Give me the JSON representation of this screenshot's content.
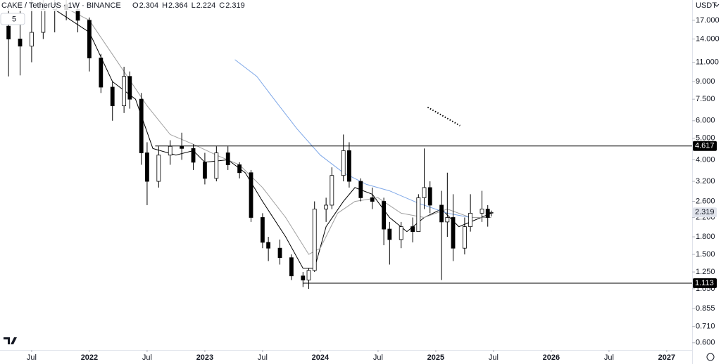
{
  "chart_data": {
    "type": "candlestick",
    "title": "CAKE / TetherUS · 1W · BINANCE",
    "ohlc_labels": [
      "O",
      "H",
      "L",
      "C"
    ],
    "ohlc_values": [
      2.304,
      2.364,
      2.224,
      2.319
    ],
    "currency": "USDT",
    "indicator_badge": "5",
    "log_scale": true,
    "up_color": "#ffffff",
    "down_color": "#000000",
    "outline_color": "#000000",
    "x": [
      2021.3,
      2021.4,
      2021.5,
      2021.6,
      2021.7,
      2021.8,
      2021.9,
      2022.0,
      2022.1,
      2022.2,
      2022.3,
      2022.35,
      2022.45,
      2022.5,
      2022.6,
      2022.7,
      2022.8,
      2022.9,
      2023.0,
      2023.1,
      2023.2,
      2023.3,
      2023.4,
      2023.5,
      2023.55,
      2023.65,
      2023.75,
      2023.85,
      2023.9,
      2023.95,
      2024.05,
      2024.1,
      2024.2,
      2024.25,
      2024.35,
      2024.45,
      2024.55,
      2024.6,
      2024.7,
      2024.8,
      2024.85,
      2024.9,
      2024.95,
      2025.05,
      2025.1,
      2025.15,
      2025.25,
      2025.3,
      2025.4,
      2025.45,
      2025.48
    ],
    "open": [
      16,
      14,
      13,
      15,
      19,
      20,
      19,
      17,
      11.5,
      8.5,
      7,
      9.5,
      7.5,
      4.3,
      3.2,
      4.2,
      4.6,
      4.5,
      3.9,
      3.3,
      4.3,
      3.8,
      3.5,
      2.2,
      1.7,
      1.6,
      1.45,
      1.2,
      1.15,
      1.27,
      2.4,
      2.5,
      3.4,
      4.4,
      3.2,
      2.7,
      2.6,
      1.95,
      1.75,
      2.0,
      1.9,
      2.7,
      3.0,
      2.5,
      2.1,
      2.2,
      1.6,
      2.0,
      2.3,
      2.4,
      2.304
    ],
    "high": [
      20,
      20,
      21,
      21,
      21,
      21,
      20,
      17.5,
      12,
      9,
      10.5,
      10,
      8,
      4.8,
      4.6,
      4.9,
      5.3,
      4.7,
      4.3,
      4.6,
      4.6,
      3.9,
      3.6,
      2.3,
      1.8,
      1.75,
      1.5,
      1.25,
      1.3,
      2.6,
      2.7,
      3.7,
      5.2,
      4.8,
      3.3,
      3.0,
      2.7,
      2.1,
      2.1,
      2.2,
      2.8,
      4.5,
      3.2,
      2.9,
      3.5,
      2.8,
      2.2,
      2.8,
      2.9,
      2.5,
      2.364
    ],
    "low": [
      9.5,
      9.6,
      11,
      14,
      15,
      17,
      15,
      10,
      8,
      6,
      6.5,
      6.8,
      3.8,
      2.5,
      3.0,
      3.8,
      4.0,
      3.6,
      3.1,
      3.2,
      3.6,
      3.3,
      2.1,
      1.6,
      1.4,
      1.35,
      1.15,
      1.07,
      1.05,
      1.25,
      2.1,
      2.4,
      3.2,
      3.0,
      2.6,
      2.4,
      1.65,
      1.35,
      1.6,
      1.7,
      1.9,
      2.4,
      2.3,
      1.15,
      1.8,
      1.4,
      1.5,
      1.9,
      2.1,
      2.0,
      2.224
    ],
    "close": [
      14,
      13,
      15,
      19,
      20,
      19,
      17,
      11.5,
      8.5,
      7,
      9.5,
      7.5,
      4.3,
      3.2,
      4.2,
      4.6,
      4.5,
      3.9,
      3.3,
      4.3,
      3.8,
      3.5,
      2.2,
      1.7,
      1.6,
      1.45,
      1.2,
      1.15,
      1.27,
      2.4,
      2.5,
      3.4,
      4.4,
      3.2,
      2.7,
      2.6,
      1.95,
      1.75,
      2.0,
      1.9,
      2.7,
      3.0,
      2.5,
      2.1,
      2.2,
      1.6,
      2.0,
      2.3,
      2.4,
      2.2,
      2.319
    ],
    "lines": [
      {
        "color": "#000000",
        "dotted": false,
        "x": [
          2021.7,
          2022.0,
          2022.2,
          2022.4,
          2022.55,
          2022.75,
          2022.9,
          2023.0,
          2023.2,
          2023.35,
          2023.5,
          2023.7,
          2023.85,
          2023.95,
          2024.05,
          2024.2,
          2024.3,
          2024.45,
          2024.6,
          2024.75,
          2024.9,
          2025.05,
          2025.2,
          2025.3,
          2025.48
        ],
        "values": [
          19,
          15,
          9,
          7.5,
          4.5,
          4.2,
          4.4,
          3.9,
          4.0,
          3.5,
          2.6,
          1.8,
          1.3,
          1.3,
          2.0,
          2.6,
          3.0,
          2.8,
          2.2,
          1.9,
          2.2,
          2.4,
          2.0,
          2.1,
          2.3
        ]
      },
      {
        "color": "#a0a0a0",
        "dotted": false,
        "x": [
          2021.7,
          2022.0,
          2022.3,
          2022.5,
          2022.7,
          2022.9,
          2023.1,
          2023.3,
          2023.5,
          2023.7,
          2023.9,
          2024.0,
          2024.15,
          2024.3,
          2024.5,
          2024.7,
          2024.9,
          2025.1,
          2025.3,
          2025.48
        ],
        "values": [
          20.5,
          17,
          10,
          7,
          5.2,
          4.7,
          4.2,
          3.8,
          3.0,
          2.2,
          1.5,
          1.6,
          2.3,
          2.6,
          2.7,
          2.3,
          2.2,
          2.4,
          2.2,
          2.2
        ]
      },
      {
        "color": "#7fa8e8",
        "dotted": false,
        "x": [
          2023.26,
          2023.45,
          2023.6,
          2023.8,
          2024.0,
          2024.2,
          2024.4,
          2024.6,
          2024.85,
          2025.1,
          2025.3
        ],
        "values": [
          11.3,
          9.5,
          7.5,
          5.5,
          4.2,
          3.5,
          3.1,
          2.9,
          2.55,
          2.3,
          2.2
        ]
      },
      {
        "color": "#000000",
        "dotted": true,
        "x": [
          2024.93,
          2025.21
        ],
        "values": [
          6.9,
          5.7
        ]
      }
    ],
    "hlines": [
      {
        "x": 2022.57,
        "value": 4.617
      },
      {
        "x": 2023.85,
        "value": 1.113
      }
    ],
    "last_price": 2.319,
    "xlim": [
      2021.226,
      2027.22
    ],
    "ylim": [
      0.557,
      20.98
    ],
    "xticks": [
      {
        "value": 2021.5,
        "label": "Jul"
      },
      {
        "value": 2022,
        "label": "2022"
      },
      {
        "value": 2022.5,
        "label": "Jul"
      },
      {
        "value": 2023,
        "label": "2023"
      },
      {
        "value": 2023.5,
        "label": "Jul"
      },
      {
        "value": 2024,
        "label": "2024"
      },
      {
        "value": 2024.5,
        "label": "Jul"
      },
      {
        "value": 2025,
        "label": "2025"
      },
      {
        "value": 2025.5,
        "label": "Jul"
      },
      {
        "value": 2026,
        "label": "2026"
      },
      {
        "value": 2026.5,
        "label": "Jul"
      },
      {
        "value": 2027,
        "label": "2027"
      }
    ],
    "yticks": [
      {
        "value": 17,
        "label": "17.000"
      },
      {
        "value": 14,
        "label": "14.000"
      },
      {
        "value": 11,
        "label": "11.000"
      },
      {
        "value": 9,
        "label": "9.000"
      },
      {
        "value": 7.5,
        "label": "7.500"
      },
      {
        "value": 6,
        "label": "6.000"
      },
      {
        "value": 5,
        "label": "5.000"
      },
      {
        "value": 4,
        "label": "4.000"
      },
      {
        "value": 3.2,
        "label": "3.200"
      },
      {
        "value": 2.6,
        "label": "2.600"
      },
      {
        "value": 2.2,
        "label": "2.200"
      },
      {
        "value": 1.8,
        "label": "1.800"
      },
      {
        "value": 1.5,
        "label": "1.500"
      },
      {
        "value": 1.25,
        "label": "1.250"
      },
      {
        "value": 1.05,
        "label": "1.050"
      },
      {
        "value": 0.855,
        "label": "0.855"
      },
      {
        "value": 0.71,
        "label": "0.710"
      },
      {
        "value": 0.6,
        "label": "0.600"
      }
    ]
  }
}
